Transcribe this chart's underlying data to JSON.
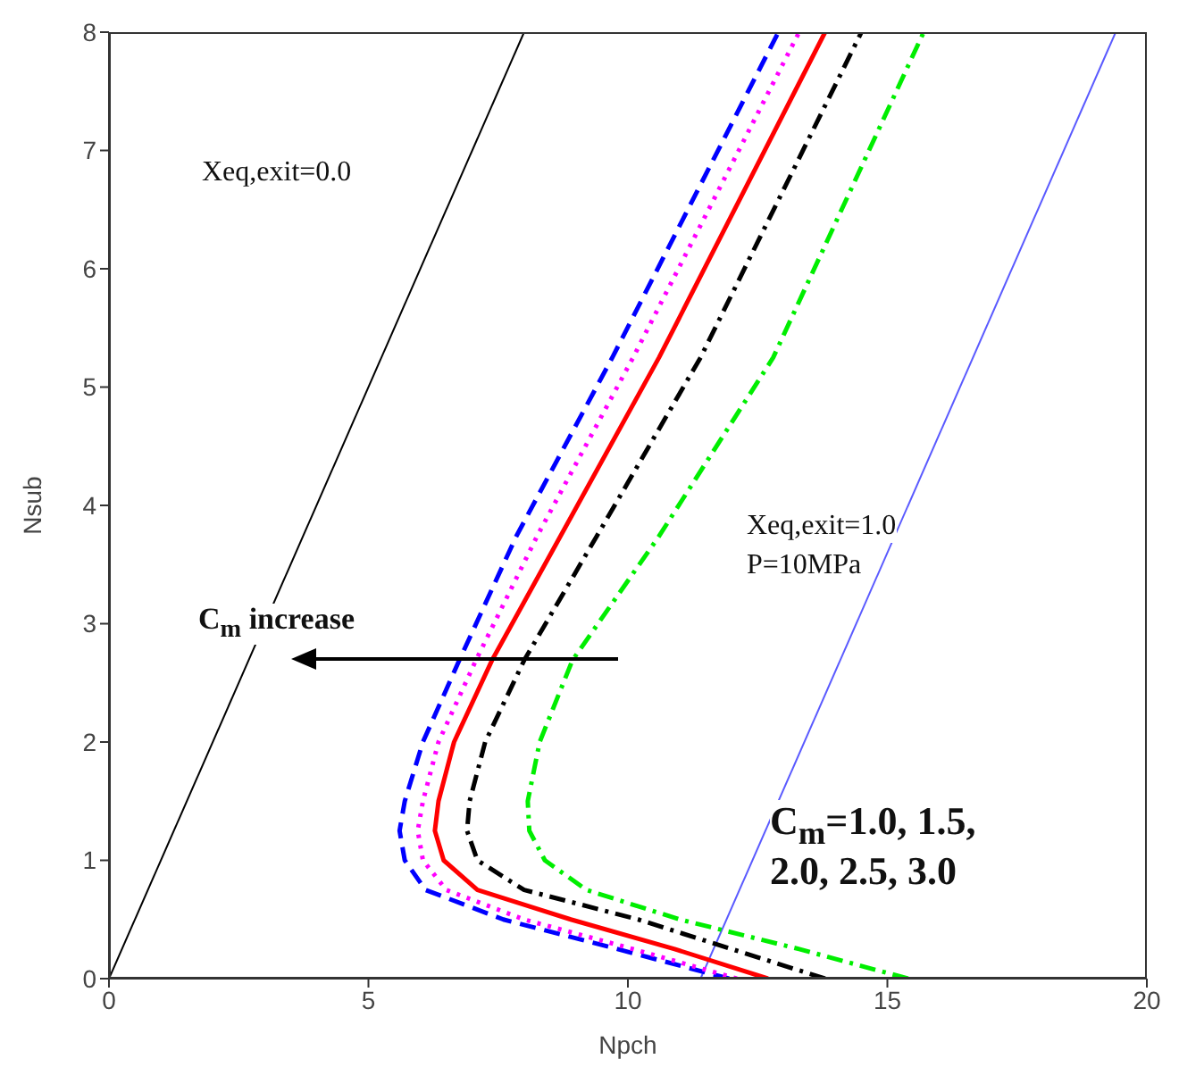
{
  "chart_data": {
    "type": "line",
    "xlabel": "Npch",
    "ylabel": "Nsub",
    "xlim": [
      0,
      20
    ],
    "ylim": [
      0,
      8
    ],
    "xticks": [
      0,
      5,
      10,
      15,
      20
    ],
    "yticks": [
      0,
      1,
      2,
      3,
      4,
      5,
      6,
      7,
      8
    ],
    "grid": false,
    "legend": false,
    "marker": "none",
    "series": [
      {
        "color": "#000000",
        "line_style": "solid",
        "x": [
          0,
          8
        ],
        "values": [
          0,
          8
        ]
      },
      {
        "color": "#5a5aff",
        "line_style": "solid",
        "x": [
          11.4,
          19.4
        ],
        "values": [
          0,
          8
        ]
      },
      {
        "color": "#0000ff",
        "line_style": "dashed",
        "x": [
          11.95,
          9.8,
          7.6,
          6.1,
          5.7,
          5.6,
          5.7,
          6.05,
          6.75,
          7.85,
          9.7,
          12.9
        ],
        "values": [
          0,
          0.25,
          0.5,
          0.75,
          1,
          1.25,
          1.5,
          2,
          2.69,
          3.74,
          5.25,
          8
        ]
      },
      {
        "color": "#ff00ff",
        "line_style": "dotted",
        "x": [
          12.1,
          10.1,
          8.0,
          6.5,
          6.05,
          5.95,
          6.05,
          6.35,
          7.07,
          8.25,
          10.1,
          13.3
        ],
        "values": [
          0,
          0.25,
          0.5,
          0.75,
          1,
          1.25,
          1.5,
          2,
          2.69,
          3.74,
          5.25,
          8
        ]
      },
      {
        "color": "#ff0000",
        "line_style": "solid",
        "x": [
          12.7,
          10.9,
          8.9,
          7.1,
          6.45,
          6.28,
          6.35,
          6.65,
          7.38,
          8.7,
          10.6,
          13.8
        ],
        "values": [
          0,
          0.25,
          0.5,
          0.75,
          1,
          1.25,
          1.5,
          2,
          2.69,
          3.74,
          5.25,
          8
        ]
      },
      {
        "color": "#000000",
        "line_style": "dashdot",
        "x": [
          13.8,
          12.0,
          10.2,
          8.0,
          7.1,
          6.9,
          6.95,
          7.25,
          8.0,
          9.4,
          11.4,
          14.5
        ],
        "values": [
          0,
          0.25,
          0.5,
          0.75,
          1,
          1.25,
          1.5,
          2,
          2.69,
          3.74,
          5.25,
          8
        ]
      },
      {
        "color": "#00ee00",
        "line_style": "dashdot",
        "x": [
          15.4,
          13.3,
          11.0,
          9.2,
          8.4,
          8.1,
          8.07,
          8.3,
          8.93,
          10.6,
          12.8,
          15.7
        ],
        "values": [
          0,
          0.25,
          0.5,
          0.75,
          1,
          1.25,
          1.5,
          2,
          2.69,
          3.74,
          5.25,
          8
        ]
      }
    ],
    "annotations": [
      "Xeq,exit=0.0",
      "Xeq,exit=1.0",
      "P=10MPa",
      "C$_{m}$ increase",
      "C$_{m}$=1.0,  1.5,",
      "2.0, 2.5, 3.0"
    ]
  }
}
